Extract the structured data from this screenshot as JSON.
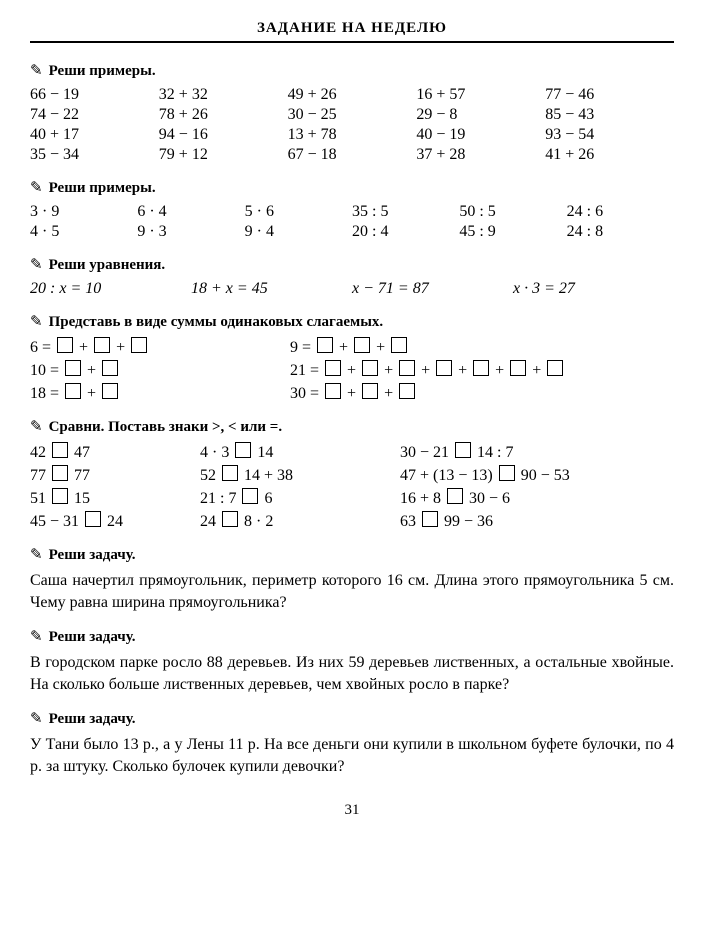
{
  "title": "ЗАДАНИЕ НА НЕДЕЛЮ",
  "h1": "Реши примеры.",
  "g1": [
    "66 − 19",
    "32 + 32",
    "49 + 26",
    "16 + 57",
    "77 − 46",
    "74 − 22",
    "78 + 26",
    "30 − 25",
    "29 − 8",
    "85 − 43",
    "40 + 17",
    "94 − 16",
    "13 + 78",
    "40 − 19",
    "93 − 54",
    "35 − 34",
    "79 + 12",
    "67 − 18",
    "37 + 28",
    "41 + 26"
  ],
  "h2": "Реши примеры.",
  "g2": [
    "3 · 9",
    "6 · 4",
    "5 · 6",
    "35 : 5",
    "50 : 5",
    "24 : 6",
    "4 · 5",
    "9 · 3",
    "9 · 4",
    "20 : 4",
    "45 : 9",
    "24 : 8"
  ],
  "h3": "Реши уравнения.",
  "eq": [
    "20 : x = 10",
    "18 + x = 45",
    "x − 71 = 87",
    "x · 3 = 27"
  ],
  "h4": "Представь в виде суммы одинаковых слагаемых.",
  "sumsL": [
    "6 =",
    "10 =",
    "18 ="
  ],
  "sumsLboxes": [
    3,
    2,
    2
  ],
  "sumsR": [
    "9 =",
    "21 =",
    "30 ="
  ],
  "sumsRboxes": [
    3,
    7,
    3
  ],
  "h5": "Сравни. Поставь знаки >, < или =.",
  "cmp": [
    [
      "42",
      "47"
    ],
    [
      "4 · 3",
      "14"
    ],
    [
      "30 − 21",
      "14 : 7"
    ],
    [
      "77",
      "77"
    ],
    [
      "52",
      "14 + 38"
    ],
    [
      "47 + (13 − 13)",
      "90 − 53"
    ],
    [
      "51",
      "15"
    ],
    [
      "21 : 7",
      "6"
    ],
    [
      "16 + 8",
      "30 − 6"
    ],
    [
      "45 − 31",
      "24"
    ],
    [
      "24",
      "8 · 2"
    ],
    [
      "63",
      "99 − 36"
    ]
  ],
  "h6": "Реши задачу.",
  "p1": "Саша начертил прямоугольник, периметр которого 16 см. Длина этого прямоугольника 5 см. Чему равна ширина прямоугольника?",
  "h7": "Реши задачу.",
  "p2": "В городском парке росло 88 деревьев. Из них 59 деревьев лиственных, а остальные хвойные. На сколько больше лиственных деревьев, чем хвойных росло в парке?",
  "h8": "Реши задачу.",
  "p3": "У Тани было 13 р., а у Лены 11 р. На все деньги они купили в школьном буфете булочки, по 4 р. за штуку. Сколько булочек купили девочки?",
  "pagenum": "31"
}
